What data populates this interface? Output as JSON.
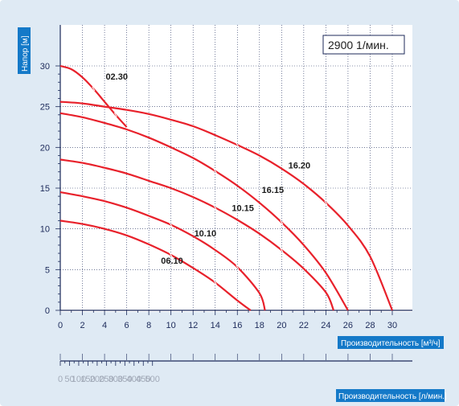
{
  "chart_data": {
    "type": "line",
    "speed_label": "2900 1/мин.",
    "ylabel": "Напор [м]",
    "xlabel": "Производительность [м³/ч]",
    "x2label": "Производительность [л/мин.]",
    "xlim": [
      0,
      30
    ],
    "ylim": [
      0,
      30
    ],
    "x_ticks": [
      "0",
      "2",
      "4",
      "6",
      "8",
      "10",
      "12",
      "14",
      "16",
      "18",
      "20",
      "22",
      "24",
      "26",
      "28",
      "30"
    ],
    "y_ticks": [
      "0",
      "5",
      "10",
      "15",
      "20",
      "25",
      "30"
    ],
    "x2_ticks": [
      "0",
      "50",
      "100",
      "150",
      "200",
      "250",
      "300",
      "350",
      "400",
      "450",
      "500"
    ],
    "grid": true,
    "line_color": "#e8212b",
    "series": [
      {
        "name": "02.30",
        "x": [
          0,
          1,
          2,
          3,
          4,
          5,
          6
        ],
        "y": [
          30,
          29.6,
          28.6,
          27.2,
          25.6,
          24,
          22.5
        ]
      },
      {
        "name": "16.20",
        "x": [
          0,
          2,
          4,
          6,
          8,
          10,
          12,
          14,
          16,
          18,
          20,
          22,
          24,
          26,
          28,
          30
        ],
        "y": [
          25.6,
          25.4,
          25,
          24.6,
          24.1,
          23.4,
          22.6,
          21.5,
          20.3,
          19,
          17.4,
          15.5,
          13.2,
          10.4,
          6.6,
          0
        ]
      },
      {
        "name": "16.15",
        "x": [
          0,
          2,
          4,
          6,
          8,
          10,
          12,
          14,
          16,
          18,
          20,
          22,
          24,
          26
        ],
        "y": [
          24.2,
          23.7,
          23,
          22.2,
          21.2,
          20,
          18.7,
          17.1,
          15.3,
          13.2,
          10.8,
          8,
          4.6,
          0
        ]
      },
      {
        "name": "10.15",
        "x": [
          0,
          2,
          4,
          6,
          8,
          10,
          12,
          14,
          16,
          18,
          20,
          22,
          24,
          24.7
        ],
        "y": [
          18.5,
          18.1,
          17.5,
          16.8,
          15.9,
          15,
          13.9,
          12.6,
          11.1,
          9.4,
          7.4,
          5.1,
          2.2,
          0
        ]
      },
      {
        "name": "10.10",
        "x": [
          0,
          2,
          4,
          6,
          8,
          10,
          12,
          14,
          16,
          18,
          18.5
        ],
        "y": [
          14.5,
          14,
          13.4,
          12.6,
          11.6,
          10.5,
          9.1,
          7.4,
          5.3,
          2.1,
          0
        ]
      },
      {
        "name": "06.10",
        "x": [
          0,
          2,
          4,
          6,
          8,
          10,
          12,
          14,
          16,
          17.2
        ],
        "y": [
          11,
          10.6,
          10,
          9.2,
          8.1,
          6.8,
          5.2,
          3.4,
          1.2,
          0
        ]
      }
    ],
    "curve_labels": [
      {
        "text": "02.30",
        "x": 4.1,
        "y": 28.3
      },
      {
        "text": "16.20",
        "x": 20.6,
        "y": 17.4
      },
      {
        "text": "16.15",
        "x": 18.2,
        "y": 14.4
      },
      {
        "text": "10.15",
        "x": 15.5,
        "y": 12.2
      },
      {
        "text": "10.10",
        "x": 12.1,
        "y": 9.1
      },
      {
        "text": "06.10",
        "x": 9.1,
        "y": 5.7
      }
    ]
  }
}
